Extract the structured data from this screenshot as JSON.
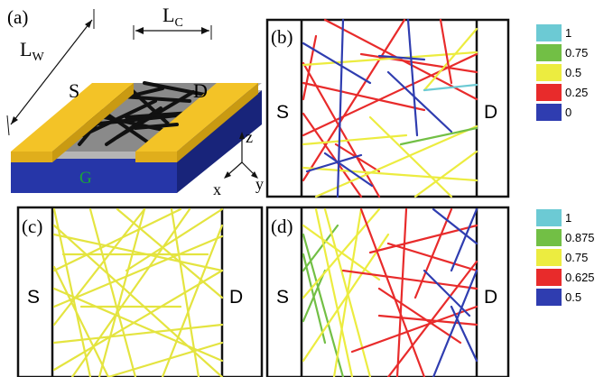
{
  "panels": {
    "a": {
      "tag": "(a)",
      "lw_main": "L",
      "lw_sub": "W",
      "lc_main": "L",
      "lc_sub": "C",
      "source": "S",
      "drain": "D",
      "gate": "G",
      "axes": {
        "z": "z",
        "y": "y",
        "x": "x"
      }
    },
    "b": {
      "tag": "(b)",
      "left": "S",
      "right": "D"
    },
    "c": {
      "tag": "(c)",
      "left": "S",
      "right": "D"
    },
    "d": {
      "tag": "(d)",
      "left": "S",
      "right": "D"
    }
  },
  "legends": {
    "top": [
      {
        "label": "1",
        "color": "#6ccad4"
      },
      {
        "label": "0.75",
        "color": "#72bf45"
      },
      {
        "label": "0.5",
        "color": "#ecec40"
      },
      {
        "label": "0.25",
        "color": "#e82b2b"
      },
      {
        "label": "0",
        "color": "#2f3db0"
      }
    ],
    "bottom": [
      {
        "label": "1",
        "color": "#6ccad4"
      },
      {
        "label": "0.875",
        "color": "#72bf45"
      },
      {
        "label": "0.75",
        "color": "#ecec40"
      },
      {
        "label": "0.625",
        "color": "#e82b2b"
      },
      {
        "label": "0.5",
        "color": "#2f3db0"
      }
    ]
  },
  "colors": {
    "electrode": "#f3c327",
    "electrode_side": "#c99a12",
    "channel": "#8a8a8a",
    "gate": "#2636a8",
    "gate_side": "#18247a",
    "oxide": "#b5b5b5",
    "gate_label": "#1aa33a",
    "tube": "#111111"
  }
}
